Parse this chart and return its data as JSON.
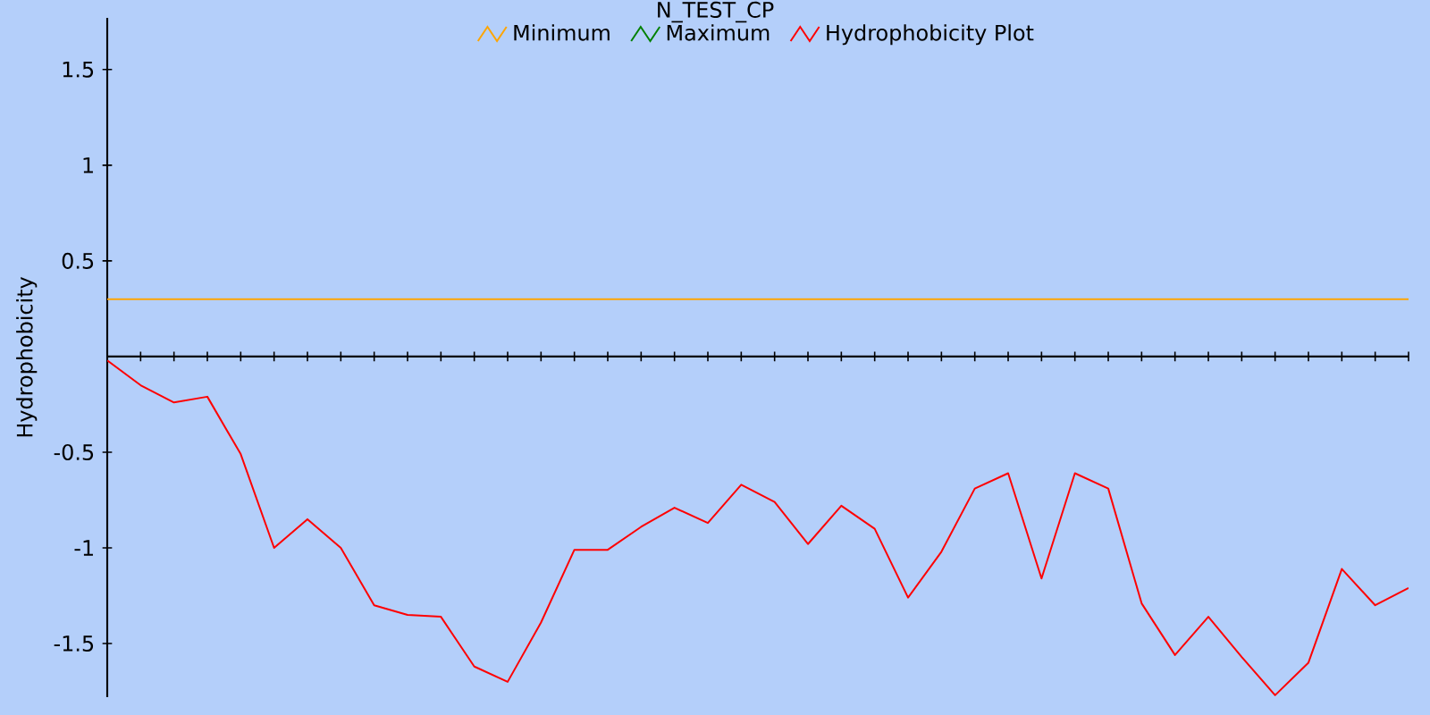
{
  "chart_data": {
    "type": "line",
    "title": "N_TEST_CP",
    "ylabel": "Hydrophobicity",
    "categories": [
      null,
      null,
      null,
      null,
      null,
      null,
      null,
      null,
      null,
      null,
      null,
      null,
      null,
      null,
      null,
      null,
      null,
      null,
      null,
      null,
      null,
      null,
      null,
      null,
      null,
      null,
      null,
      null,
      null,
      null,
      null,
      null,
      null,
      null,
      null,
      null,
      null,
      null,
      null,
      null
    ],
    "series": [
      {
        "name": "Minimum",
        "color": "#ffa500",
        "values": [
          0.3,
          0.3,
          0.3,
          0.3,
          0.3,
          0.3,
          0.3,
          0.3,
          0.3,
          0.3,
          0.3,
          0.3,
          0.3,
          0.3,
          0.3,
          0.3,
          0.3,
          0.3,
          0.3,
          0.3,
          0.3,
          0.3,
          0.3,
          0.3,
          0.3,
          0.3,
          0.3,
          0.3,
          0.3,
          0.3,
          0.3,
          0.3,
          0.3,
          0.3,
          0.3,
          0.3,
          0.3,
          0.3,
          0.3,
          0.3
        ]
      },
      {
        "name": "Maximum",
        "color": "#008000",
        "values": [
          null,
          null,
          null,
          null,
          null,
          null,
          null,
          null,
          null,
          null,
          null,
          null,
          null,
          null,
          null,
          null,
          null,
          null,
          null,
          null,
          null,
          null,
          null,
          null,
          null,
          null,
          null,
          null,
          null,
          null,
          null,
          null,
          null,
          null,
          null,
          null,
          null,
          null,
          null,
          null
        ]
      },
      {
        "name": "Hydrophobicity Plot",
        "color": "#ff0000",
        "values": [
          -0.02,
          -0.15,
          -0.24,
          -0.21,
          -0.51,
          -1.0,
          -0.85,
          -1.0,
          -1.3,
          -1.35,
          -1.36,
          -1.62,
          -1.7,
          -1.39,
          -1.01,
          -1.01,
          -0.89,
          -0.79,
          -0.87,
          -0.67,
          -0.76,
          -0.98,
          -0.78,
          -0.9,
          -1.26,
          -1.02,
          -0.69,
          -0.61,
          -1.16,
          -0.61,
          -0.69,
          -1.29,
          -1.56,
          -1.36,
          -1.57,
          -1.77,
          -1.6,
          -1.11,
          -1.3,
          -1.21
        ]
      }
    ],
    "ylim": [
      -1.78,
      1.77
    ],
    "yticks": [
      -1.5,
      -1,
      -0.5,
      0.5,
      1,
      1.5
    ],
    "legend": "top",
    "tick_labels": "y"
  }
}
